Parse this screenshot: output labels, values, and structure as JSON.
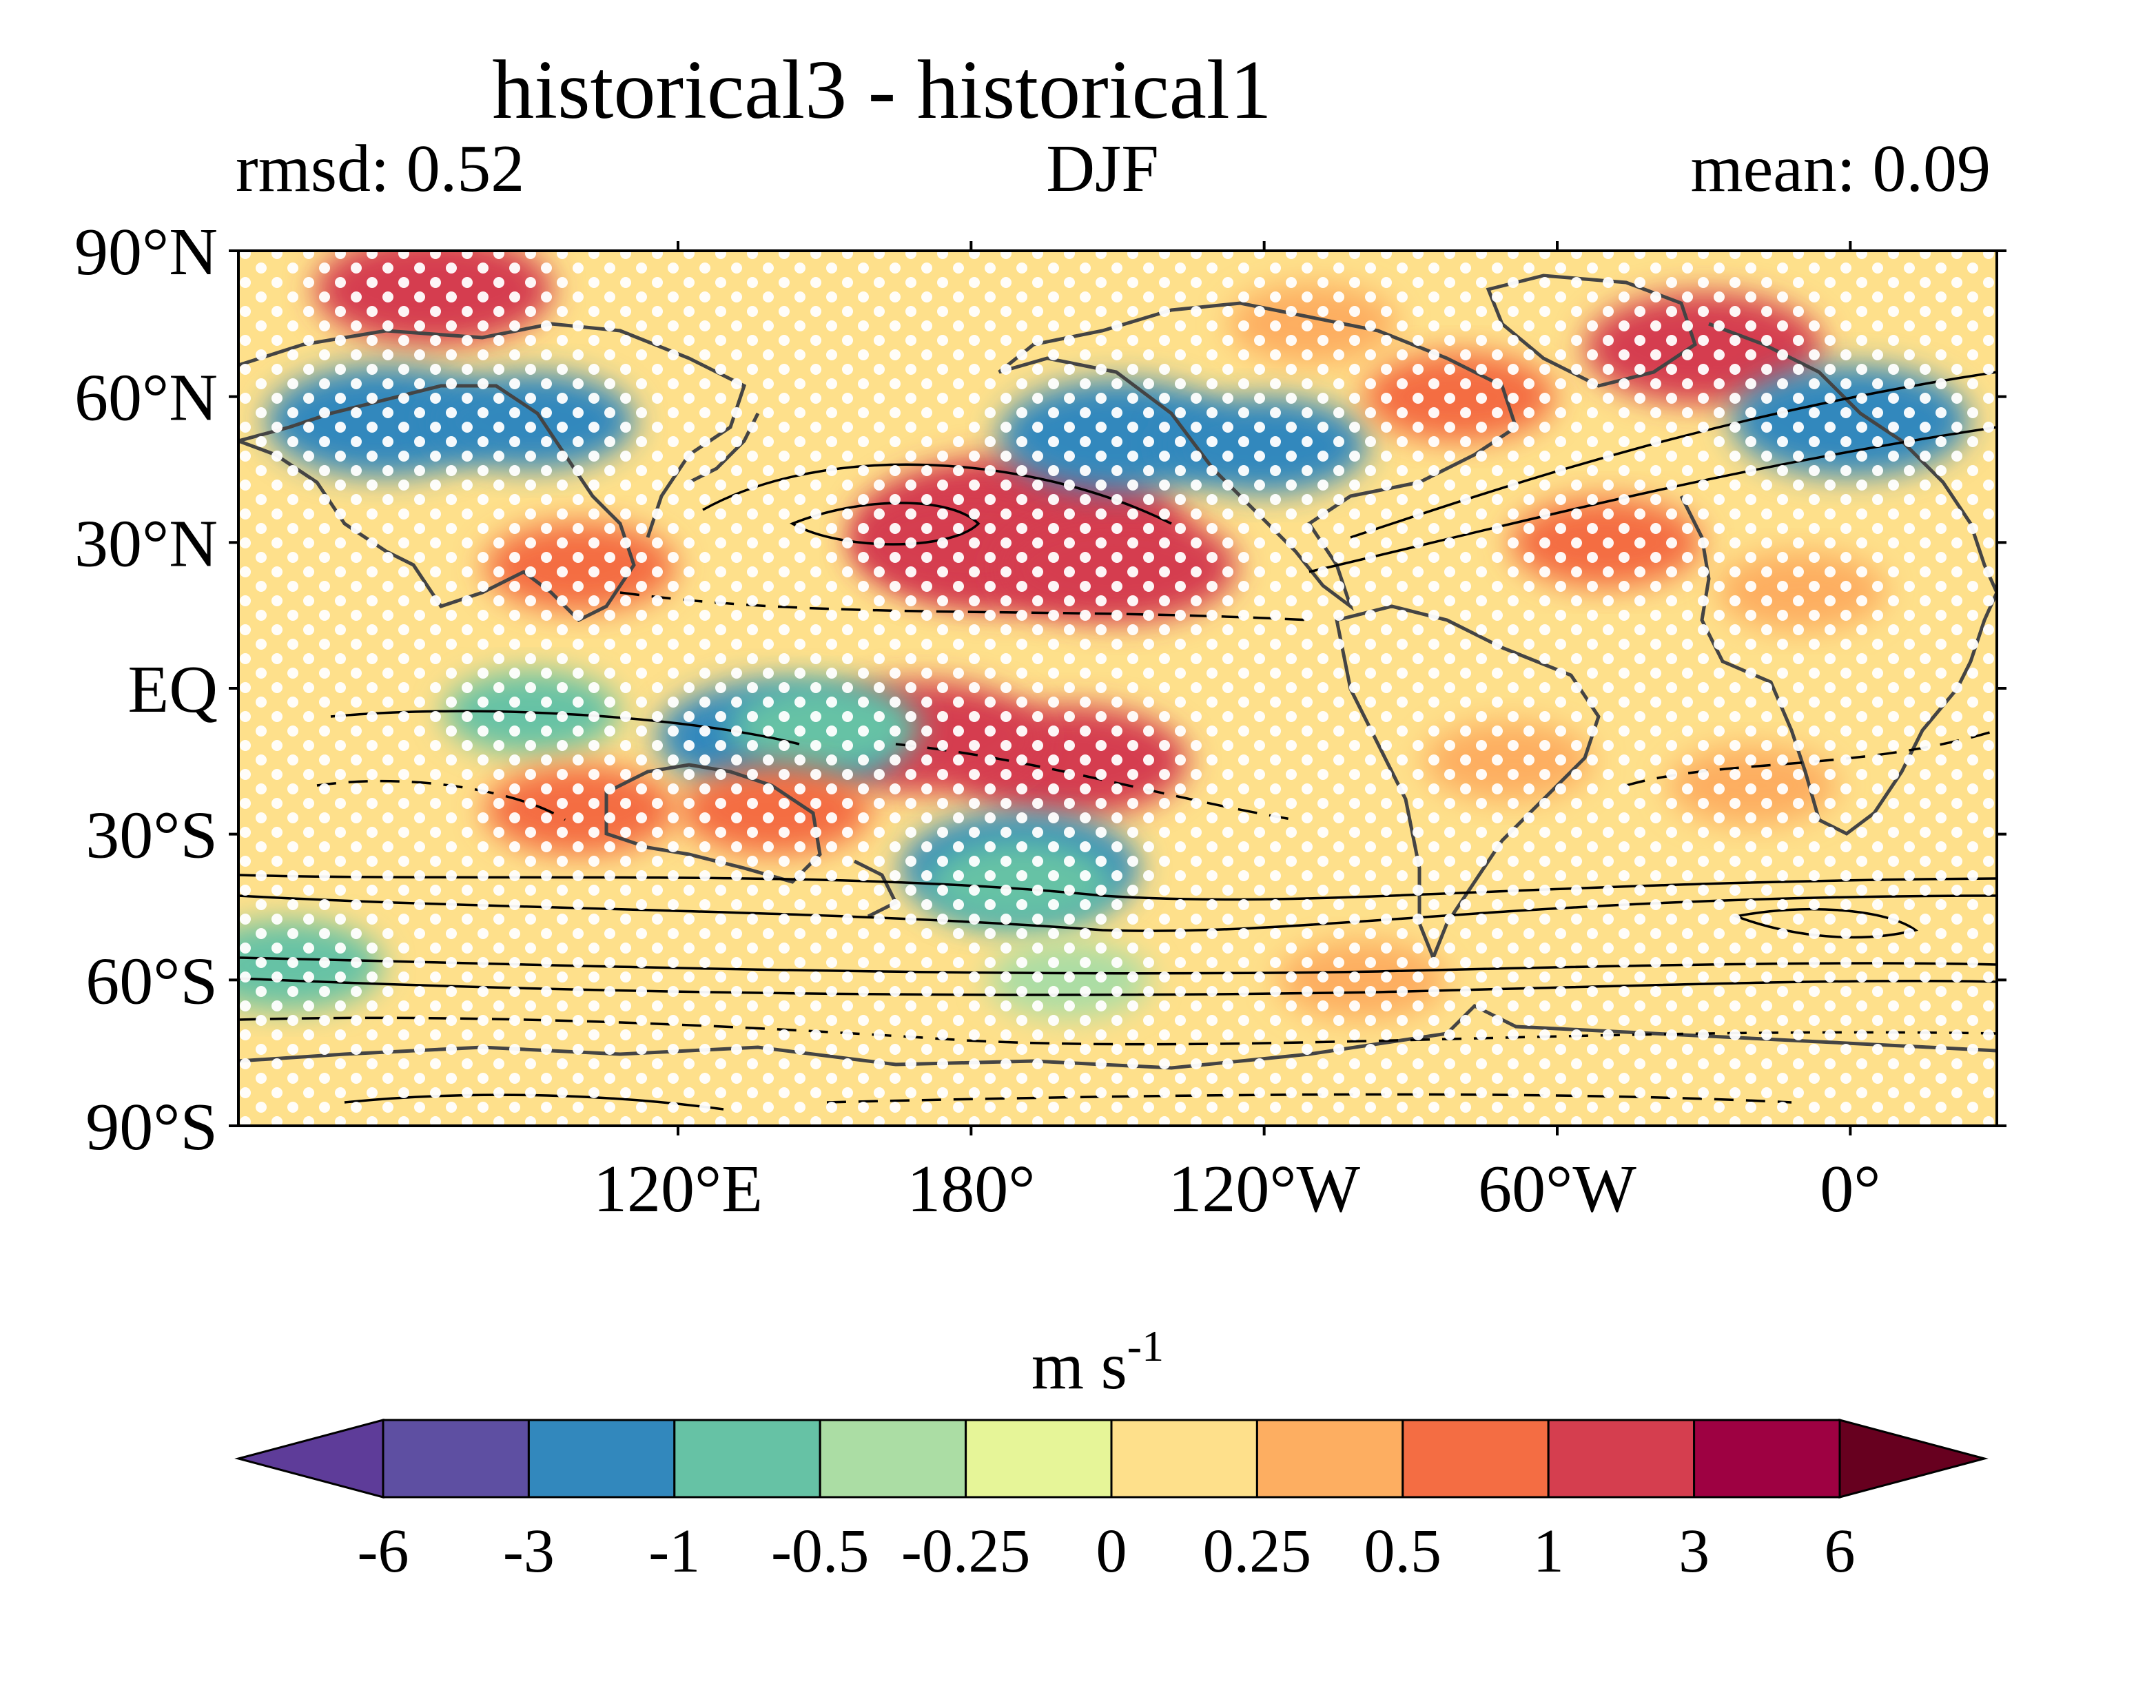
{
  "title": "historical3 - historical1",
  "subtitle_left": "rmsd: 0.52",
  "subtitle_center": "DJF",
  "subtitle_right": "mean: 0.09",
  "map": {
    "lon_range": [
      30,
      390
    ],
    "lat_range": [
      -90,
      90
    ],
    "lat_ticks": [
      {
        "value": 90,
        "label": "90°N"
      },
      {
        "value": 60,
        "label": "60°N"
      },
      {
        "value": 30,
        "label": "30°N"
      },
      {
        "value": 0,
        "label": "EQ"
      },
      {
        "value": -30,
        "label": "30°S"
      },
      {
        "value": -60,
        "label": "60°S"
      },
      {
        "value": -90,
        "label": "90°S"
      }
    ],
    "lon_ticks": [
      {
        "value": 120,
        "label": "120°E"
      },
      {
        "value": 180,
        "label": "180°"
      },
      {
        "value": 240,
        "label": "120°W"
      },
      {
        "value": 300,
        "label": "60°W"
      },
      {
        "value": 360,
        "label": "0°"
      }
    ],
    "anomaly_regions": [
      {
        "lon": 330,
        "lat": 70,
        "value": 1.5
      },
      {
        "lon": 70,
        "lat": 82,
        "value": 1.5
      },
      {
        "lon": 190,
        "lat": 32,
        "value": 3
      },
      {
        "lon": 180,
        "lat": 30,
        "value": 1.5
      },
      {
        "lon": 210,
        "lat": 25,
        "value": 1.5
      },
      {
        "lon": 200,
        "lat": -15,
        "value": 1.5
      },
      {
        "lon": 170,
        "lat": -10,
        "value": 1.5
      },
      {
        "lon": 60,
        "lat": 55,
        "value": -1.5
      },
      {
        "lon": 90,
        "lat": 55,
        "value": -1
      },
      {
        "lon": 210,
        "lat": 52,
        "value": -1.5
      },
      {
        "lon": 240,
        "lat": 50,
        "value": -1
      },
      {
        "lon": 360,
        "lat": 55,
        "value": -1.5
      },
      {
        "lon": 90,
        "lat": -5,
        "value": -0.5
      },
      {
        "lon": 140,
        "lat": -10,
        "value": -1.5
      },
      {
        "lon": 150,
        "lat": -8,
        "value": -0.75
      },
      {
        "lon": 190,
        "lat": -37,
        "value": -1.5
      },
      {
        "lon": 190,
        "lat": -40,
        "value": -0.75
      },
      {
        "lon": 40,
        "lat": -57,
        "value": -0.75
      },
      {
        "lon": 200,
        "lat": -60,
        "value": -0.3
      },
      {
        "lon": 100,
        "lat": -25,
        "value": 0.75
      },
      {
        "lon": 140,
        "lat": -25,
        "value": 0.75
      },
      {
        "lon": 310,
        "lat": 30,
        "value": 0.75
      },
      {
        "lon": 350,
        "lat": 20,
        "value": 0.4
      },
      {
        "lon": 100,
        "lat": 25,
        "value": 0.75
      },
      {
        "lon": 260,
        "lat": -60,
        "value": 0.4
      },
      {
        "lon": 340,
        "lat": -20,
        "value": 0.4
      },
      {
        "lon": 290,
        "lat": -15,
        "value": 0.4
      },
      {
        "lon": 280,
        "lat": 60,
        "value": 0.75
      },
      {
        "lon": 250,
        "lat": 75,
        "value": 0.4
      }
    ]
  },
  "colorbar": {
    "unit_label": "m s",
    "unit_exponent": "-1",
    "colors": [
      "#5e3c99",
      "#5e4fa2",
      "#3288bd",
      "#66c2a5",
      "#abdda4",
      "#e6f598",
      "#fee08b",
      "#fdae61",
      "#f46d43",
      "#d53e4f",
      "#9e0142",
      "#67001f"
    ],
    "tick_labels": [
      "-6",
      "-3",
      "-1",
      "-0.5",
      "-0.25",
      "0",
      "0.25",
      "0.5",
      "1",
      "3",
      "6"
    ]
  }
}
